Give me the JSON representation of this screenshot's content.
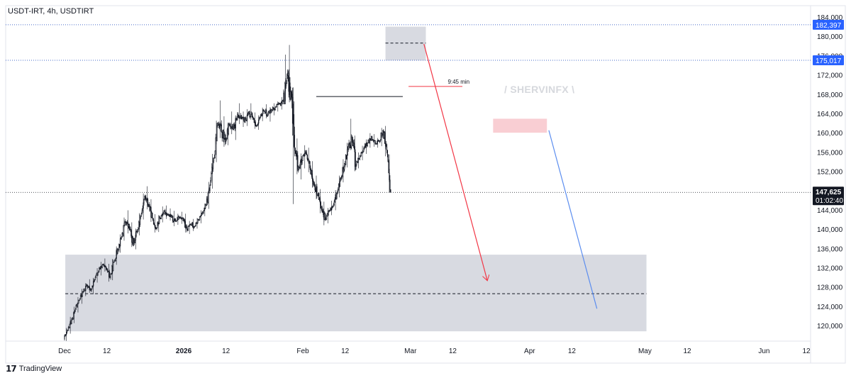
{
  "header": {
    "symbol_line": "USDT-IRT, 4h, USDTIRT"
  },
  "watermark": "/ SHERVINFX \\",
  "footer": {
    "brand": "TradingView",
    "logo_icon": "tradingview-logo-icon"
  },
  "colors": {
    "candle": "#131722",
    "zone_gray": "#d1d4dc",
    "zone_pink": "#f8c5cb",
    "arrow_red": "#f23645",
    "arrow_blue": "#5b8def",
    "level_line": "#4a6cc9",
    "price_badge_bg": "#131722",
    "level_badge_bg": "#2962ff"
  },
  "chart_data": {
    "type": "candlestick",
    "timeframe": "4h",
    "ylim": [
      116000,
      186000
    ],
    "y_ticks": [
      "184,000",
      "180,000",
      "176,000",
      "172,000",
      "168,000",
      "164,000",
      "160,000",
      "156,000",
      "152,000",
      "148,000",
      "144,000",
      "140,000",
      "136,000",
      "132,000",
      "128,000",
      "124,000",
      "120,000"
    ],
    "x_ticks": [
      {
        "label": "Dec",
        "day": 0,
        "bold": false
      },
      {
        "label": "12",
        "day": 11,
        "bold": false
      },
      {
        "label": "2026",
        "day": 31,
        "bold": true
      },
      {
        "label": "12",
        "day": 42,
        "bold": false
      },
      {
        "label": "Feb",
        "day": 62,
        "bold": false
      },
      {
        "label": "12",
        "day": 73,
        "bold": false
      },
      {
        "label": "Mar",
        "day": 90,
        "bold": false
      },
      {
        "label": "12",
        "day": 101,
        "bold": false
      },
      {
        "label": "Apr",
        "day": 121,
        "bold": false
      },
      {
        "label": "12",
        "day": 132,
        "bold": false
      },
      {
        "label": "May",
        "day": 151,
        "bold": false
      },
      {
        "label": "12",
        "day": 162,
        "bold": false
      },
      {
        "label": "Jun",
        "day": 182,
        "bold": false
      },
      {
        "label": "12",
        "day": 193,
        "bold": false
      }
    ],
    "last_price": {
      "value": 147625,
      "label": "147,625",
      "countdown": "01:02:40"
    },
    "levels": [
      {
        "value": 182397,
        "label": "182,397"
      },
      {
        "value": 175017,
        "label": "175,017"
      }
    ],
    "annotations": [
      {
        "type": "text",
        "text": "9:45 min",
        "day": 97.5,
        "value": 169600
      },
      {
        "type": "zone",
        "color": "gray",
        "day_from": 83.5,
        "day_to": 94,
        "from": 175000,
        "to": 182000
      },
      {
        "type": "zone",
        "color": "gray",
        "day_from": 0.2,
        "day_to": 151.4,
        "from": 118800,
        "to": 134700
      },
      {
        "type": "zone",
        "color": "pink",
        "day_from": 111.5,
        "day_to": 125.5,
        "from": 160000,
        "to": 162900
      },
      {
        "type": "dashed_line",
        "day_from": 83.5,
        "day_to": 94,
        "value": 178600
      },
      {
        "type": "dashed_line",
        "day_from": 0.2,
        "day_to": 151.4,
        "value": 126600
      },
      {
        "type": "segment",
        "color": "red",
        "day_from": 89.5,
        "day_to": 103.5,
        "value": 169600
      },
      {
        "type": "segment",
        "color": "black",
        "day_from": 65.5,
        "day_to": 88,
        "value": 167500
      },
      {
        "type": "arrow",
        "color": "red",
        "from_day": 93.5,
        "from_value": 178400,
        "to_day": 110,
        "to_value": 129300
      },
      {
        "type": "arrow",
        "color": "blue",
        "from_day": 126,
        "from_value": 160500,
        "to_day": 138.5,
        "to_value": 123500
      }
    ],
    "series": [
      {
        "ohlc_daily": [
          [
            0,
            117200,
            119500,
            116800,
            119000
          ],
          [
            1,
            119000,
            121800,
            118300,
            121200
          ],
          [
            2,
            121200,
            123900,
            120500,
            123400
          ],
          [
            3,
            123400,
            125900,
            122700,
            125300
          ],
          [
            4,
            125300,
            127600,
            124500,
            127000
          ],
          [
            5,
            127000,
            128800,
            126100,
            128300
          ],
          [
            6,
            128300,
            129600,
            126800,
            127200
          ],
          [
            7,
            127200,
            129900,
            126500,
            129500
          ],
          [
            8,
            129500,
            131900,
            128900,
            131300
          ],
          [
            9,
            131300,
            133200,
            130400,
            132600
          ],
          [
            10,
            132600,
            133900,
            131200,
            131700
          ],
          [
            11,
            131700,
            132800,
            129100,
            130000
          ],
          [
            12,
            130000,
            133800,
            129400,
            133200
          ],
          [
            13,
            133200,
            136400,
            132600,
            135800
          ],
          [
            14,
            135800,
            138900,
            135100,
            138400
          ],
          [
            15,
            138400,
            142400,
            137600,
            141600
          ],
          [
            16,
            141600,
            143900,
            139100,
            140200
          ],
          [
            17,
            140200,
            141400,
            136300,
            136900
          ],
          [
            18,
            136900,
            140100,
            135800,
            139400
          ],
          [
            19,
            139400,
            143300,
            138700,
            142700
          ],
          [
            20,
            142700,
            147400,
            142000,
            146800
          ],
          [
            21,
            146800,
            148900,
            144100,
            145100
          ],
          [
            22,
            145100,
            146200,
            141500,
            142300
          ],
          [
            23,
            142300,
            143100,
            139300,
            140100
          ],
          [
            24,
            140100,
            142900,
            139400,
            142300
          ],
          [
            25,
            142300,
            144700,
            141400,
            143700
          ],
          [
            26,
            143700,
            144900,
            142100,
            143000
          ],
          [
            27,
            143000,
            144300,
            141800,
            142400
          ],
          [
            28,
            142400,
            143800,
            140600,
            141600
          ],
          [
            29,
            141600,
            143200,
            140900,
            142400
          ],
          [
            30,
            142400,
            143600,
            141100,
            141800
          ],
          [
            31,
            141800,
            143200,
            139300,
            139800
          ],
          [
            32,
            139800,
            141700,
            139000,
            141100
          ],
          [
            33,
            141100,
            142100,
            139600,
            140600
          ],
          [
            34,
            140600,
            142300,
            140100,
            141900
          ],
          [
            35,
            141900,
            143900,
            141200,
            143400
          ],
          [
            36,
            143400,
            145300,
            142700,
            144900
          ],
          [
            37,
            144900,
            149800,
            144200,
            149100
          ],
          [
            38,
            149100,
            155600,
            148400,
            154800
          ],
          [
            39,
            154800,
            162500,
            153900,
            161600
          ],
          [
            40,
            161600,
            166700,
            158900,
            160200
          ],
          [
            41,
            160200,
            163400,
            157100,
            158100
          ],
          [
            42,
            158100,
            162100,
            157400,
            161600
          ],
          [
            43,
            161600,
            164400,
            159700,
            160600
          ],
          [
            44,
            160600,
            163600,
            158500,
            162900
          ],
          [
            45,
            162900,
            166100,
            161800,
            163600
          ],
          [
            46,
            163600,
            164400,
            161200,
            162200
          ],
          [
            47,
            162200,
            164900,
            161400,
            164100
          ],
          [
            48,
            164100,
            166100,
            162700,
            163300
          ],
          [
            49,
            163300,
            164200,
            160800,
            161400
          ],
          [
            50,
            161400,
            163600,
            160600,
            163100
          ],
          [
            51,
            163100,
            165200,
            162400,
            164600
          ],
          [
            52,
            164600,
            165900,
            163000,
            163800
          ],
          [
            53,
            163800,
            165300,
            162300,
            164800
          ],
          [
            54,
            164800,
            166100,
            163600,
            165300
          ],
          [
            55,
            165300,
            166500,
            164400,
            165900
          ],
          [
            56,
            165900,
            167400,
            164800,
            166600
          ],
          [
            57,
            166600,
            176200,
            165900,
            171300
          ],
          [
            58,
            171300,
            178200,
            166300,
            168500
          ],
          [
            59,
            168500,
            169400,
            145200,
            156800
          ],
          [
            60,
            156800,
            158800,
            151400,
            152900
          ],
          [
            61,
            152900,
            155700,
            150300,
            154200
          ],
          [
            62,
            154200,
            157400,
            152600,
            155800
          ],
          [
            63,
            155800,
            156900,
            151800,
            152700
          ],
          [
            64,
            152700,
            154100,
            148600,
            149600
          ],
          [
            65,
            149600,
            151100,
            146200,
            147200
          ],
          [
            66,
            147200,
            148300,
            143300,
            144600
          ],
          [
            67,
            144600,
            145700,
            140800,
            141900
          ],
          [
            68,
            141900,
            144400,
            141200,
            143800
          ],
          [
            69,
            143800,
            145900,
            142900,
            144700
          ],
          [
            70,
            144700,
            148100,
            143900,
            147400
          ],
          [
            71,
            147400,
            151100,
            146600,
            150500
          ],
          [
            72,
            150500,
            154500,
            149700,
            153600
          ],
          [
            73,
            153600,
            157900,
            152800,
            157200
          ],
          [
            74,
            157200,
            162900,
            156400,
            158600
          ],
          [
            75,
            158600,
            159400,
            152000,
            153400
          ],
          [
            76,
            153400,
            155900,
            152600,
            155200
          ],
          [
            77,
            155200,
            157300,
            154300,
            156700
          ],
          [
            78,
            156700,
            158600,
            155600,
            157900
          ],
          [
            79,
            157900,
            159900,
            156900,
            159200
          ],
          [
            80,
            159200,
            159700,
            157100,
            157800
          ],
          [
            81,
            157800,
            158900,
            156900,
            158300
          ],
          [
            82,
            158300,
            161000,
            157200,
            160400
          ],
          [
            83,
            160400,
            161400,
            155100,
            156400
          ],
          [
            84,
            156400,
            155500,
            147600,
            147625
          ]
        ]
      }
    ]
  }
}
